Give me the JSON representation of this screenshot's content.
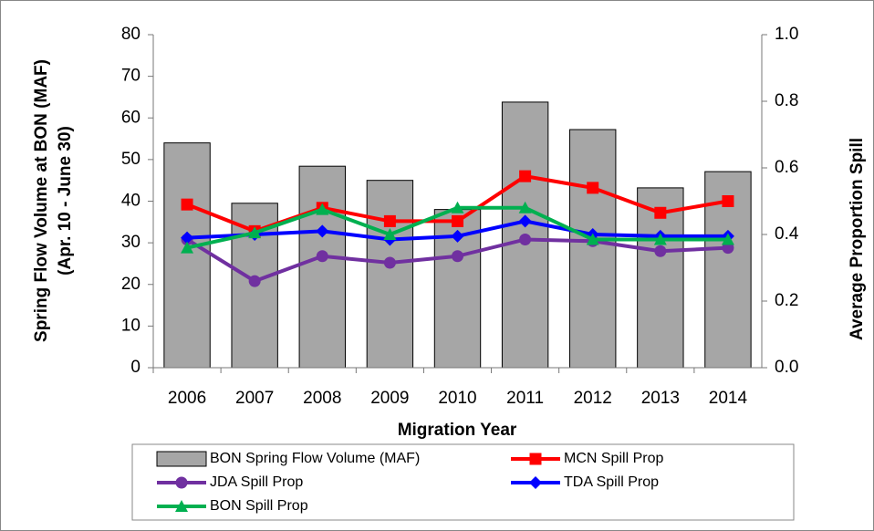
{
  "chart_data": {
    "type": "bar_line",
    "categories": [
      "2006",
      "2007",
      "2008",
      "2009",
      "2010",
      "2011",
      "2012",
      "2013",
      "2014"
    ],
    "x_label": "Migration Year",
    "y_label": [
      "Spring Flow Volume at BON (MAF)",
      "(Apr. 10 - June 30)"
    ],
    "y2_label": "Average Proportion  Spill",
    "ylim": [
      0,
      80
    ],
    "yticks": [
      0,
      10,
      20,
      30,
      40,
      50,
      60,
      70,
      80
    ],
    "y2lim": [
      0,
      1
    ],
    "y2ticks": [
      {
        "value": 0,
        "label": "0.0"
      },
      0.2,
      0.4,
      0.6,
      0.8,
      {
        "value": 1,
        "label": "1.0"
      }
    ],
    "series": [
      {
        "name": "BON Spring Flow Volume (MAF)",
        "kind": "bar",
        "axis": "y",
        "color": "#a6a6a6",
        "values": [
          54,
          39.5,
          48.4,
          45,
          38,
          63.8,
          57.2,
          43.2,
          47.1
        ]
      },
      {
        "name": "MCN Spill Prop",
        "kind": "line",
        "axis": "y2",
        "marker": "square",
        "color": "#ff0000",
        "values": [
          0.49,
          0.41,
          0.48,
          0.44,
          0.44,
          0.575,
          0.54,
          0.465,
          0.5
        ]
      },
      {
        "name": "JDA Spill Prop",
        "kind": "line",
        "axis": "y2",
        "marker": "circle",
        "color": "#7030a0",
        "values": [
          0.385,
          0.26,
          0.335,
          0.315,
          0.335,
          0.385,
          0.38,
          0.35,
          0.36
        ]
      },
      {
        "name": "TDA Spill Prop",
        "kind": "line",
        "axis": "y2",
        "marker": "diamond",
        "color": "#0000ff",
        "values": [
          0.39,
          0.4,
          0.41,
          0.385,
          0.395,
          0.44,
          0.4,
          0.395,
          0.395
        ]
      },
      {
        "name": "BON Spill Prop",
        "kind": "line",
        "axis": "y2",
        "marker": "triangle",
        "color": "#00b050",
        "values": [
          0.36,
          0.405,
          0.475,
          0.4,
          0.48,
          0.48,
          0.385,
          0.385,
          0.385
        ]
      }
    ]
  }
}
